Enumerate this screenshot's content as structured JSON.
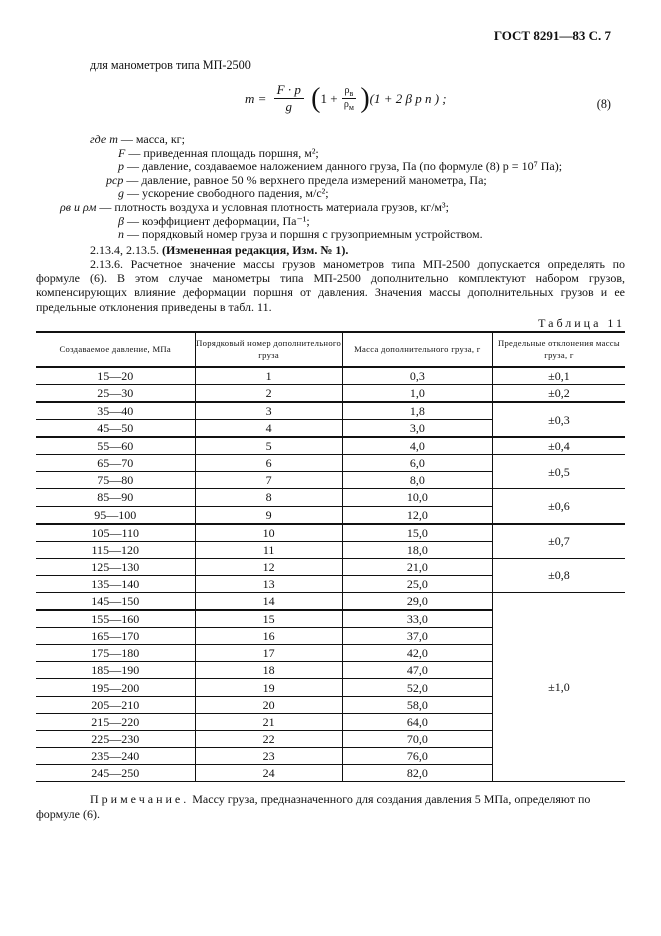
{
  "header": "ГОСТ 8291—83 С. 7",
  "intro": "для манометров типа МП-2500",
  "formula": {
    "lhs": "m",
    "num": "F · p",
    "den": "g",
    "one": "1 +",
    "rho_num": "ρ",
    "rho_num_sub": "в",
    "rho_den": "ρ",
    "rho_den_sub": "м",
    "tail": "(1 + 2 β p n ) ;",
    "number": "(8)"
  },
  "definitions": [
    {
      "sym": "где  m",
      "text": "— масса, кг;"
    },
    {
      "sym": "F",
      "text": "— приведенная площадь поршня, м²;"
    },
    {
      "sym": "p",
      "text": "— давление, создаваемое наложением данного груза, Па (по формуле (8)  p = 10⁷ Па);"
    },
    {
      "sym": "pср",
      "text": "— давление, равное 50 % верхнего предела измерений манометра, Па;"
    },
    {
      "sym": "g",
      "text": "— ускорение свободного падения, м/с²;"
    },
    {
      "sym": "ρв и ρм",
      "text": "— плотность воздуха и условная плотность материала грузов, кг/м³;"
    },
    {
      "sym": "β",
      "text": "— коэффициент деформации, Па⁻¹;"
    },
    {
      "sym": "n",
      "text": "— порядковый номер груза и поршня с грузоприемным устройством."
    }
  ],
  "amend_prefix": "2.13.4, 2.13.5.",
  "amend_bold": "(Измененная редакция, Изм. № 1).",
  "paragraph": "2.13.6. Расчетное значение массы грузов манометров типа МП-2500 допускается определять по формуле (6). В этом случае манометры типа МП-2500 дополнительно комплектуют набором грузов, компенсирующих влияние деформации поршня от давления. Значения массы дополнитель­ных грузов и ее предельные отклонения приведены в табл. 11.",
  "table_caption": "Таблица 11",
  "table": {
    "headers": [
      "Создаваемое давление, МПа",
      "Порядковый номер дополнительного груза",
      "Масса дополнительного груза, г",
      "Предельные отклонения массы груза, г"
    ],
    "rows": [
      [
        "15—20",
        "1",
        "0,3",
        "±0,1"
      ],
      [
        "25—30",
        "2",
        "1,0",
        "±0,2"
      ],
      [
        "35—40",
        "3",
        "1,8",
        "±0,3"
      ],
      [
        "45—50",
        "4",
        "3,0",
        ""
      ],
      [
        "55—60",
        "5",
        "4,0",
        "±0,4"
      ],
      [
        "65—70",
        "6",
        "6,0",
        "±0,5"
      ],
      [
        "75—80",
        "7",
        "8,0",
        ""
      ],
      [
        "85—90",
        "8",
        "10,0",
        "±0,6"
      ],
      [
        "95—100",
        "9",
        "12,0",
        ""
      ],
      [
        "105—110",
        "10",
        "15,0",
        "±0,7"
      ],
      [
        "115—120",
        "11",
        "18,0",
        ""
      ],
      [
        "125—130",
        "12",
        "21,0",
        "±0,8"
      ],
      [
        "135—140",
        "13",
        "25,0",
        ""
      ],
      [
        "145—150",
        "14",
        "29,0",
        "±1,0"
      ],
      [
        "155—160",
        "15",
        "33,0",
        ""
      ],
      [
        "165—170",
        "16",
        "37,0",
        ""
      ],
      [
        "175—180",
        "17",
        "42,0",
        ""
      ],
      [
        "185—190",
        "18",
        "47,0",
        ""
      ],
      [
        "195—200",
        "19",
        "52,0",
        ""
      ],
      [
        "205—210",
        "20",
        "58,0",
        ""
      ],
      [
        "215—220",
        "21",
        "64,0",
        ""
      ],
      [
        "225—230",
        "22",
        "70,0",
        ""
      ],
      [
        "235—240",
        "23",
        "76,0",
        ""
      ],
      [
        "245—250",
        "24",
        "82,0",
        ""
      ]
    ]
  },
  "note_label": "Примечание.",
  "note_text": " Массу груза, предназначенного для создания давления 5 МПа, определяют по формуле (6)."
}
